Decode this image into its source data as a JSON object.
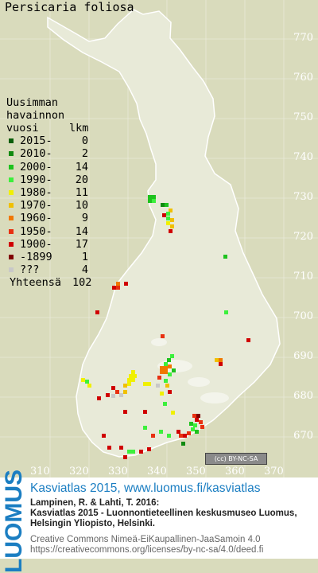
{
  "title": "Persicaria foliosa",
  "y_axis_ticks": [
    "770",
    "760",
    "750",
    "740",
    "730",
    "720",
    "710",
    "700",
    "690",
    "680",
    "670"
  ],
  "x_axis_ticks": [
    "310",
    "320",
    "330",
    "340",
    "350",
    "360",
    "370"
  ],
  "legend": {
    "heading": [
      "Uusimman",
      "havainnon"
    ],
    "col_year": "vuosi",
    "col_count": "lkm",
    "rows": [
      {
        "label": "2015-",
        "count": "0",
        "color": "#0a5e0a"
      },
      {
        "label": "2010-",
        "count": "2",
        "color": "#108a10"
      },
      {
        "label": "2000-",
        "count": "14",
        "color": "#1ec21e"
      },
      {
        "label": "1990-",
        "count": "20",
        "color": "#3cf03c"
      },
      {
        "label": "1980-",
        "count": "11",
        "color": "#f0f000"
      },
      {
        "label": "1970-",
        "count": "10",
        "color": "#f0c000"
      },
      {
        "label": "1960-",
        "count": "9",
        "color": "#f07800"
      },
      {
        "label": "1950-",
        "count": "14",
        "color": "#e83010"
      },
      {
        "label": "1900-",
        "count": "17",
        "color": "#d00000"
      },
      {
        "label": "-1899",
        "count": "1",
        "color": "#800000"
      },
      {
        "label": "???",
        "count": "4",
        "color": "#c8c8c8"
      }
    ],
    "total_label": "Yhteensä",
    "total": "102"
  },
  "license_badge": "(cc) BY-NC-SA",
  "footer": {
    "logo": "LUOMUS",
    "headline": "Kasviatlas 2015, www.luomus.fi/kasviatlas",
    "citation": [
      "Lampinen, R. & Lahti, T. 2016:",
      "Kasviatlas 2015 - Luonnontieteellinen keskusmuseo Luomus,",
      "Helsingin Yliopisto, Helsinki."
    ],
    "license": [
      "Creative Commons Nimeä-EiKaupallinen-JaaSamoin 4.0",
      "https://creativecommons.org/licenses/by-nc-sa/4.0/deed.fi"
    ]
  }
}
